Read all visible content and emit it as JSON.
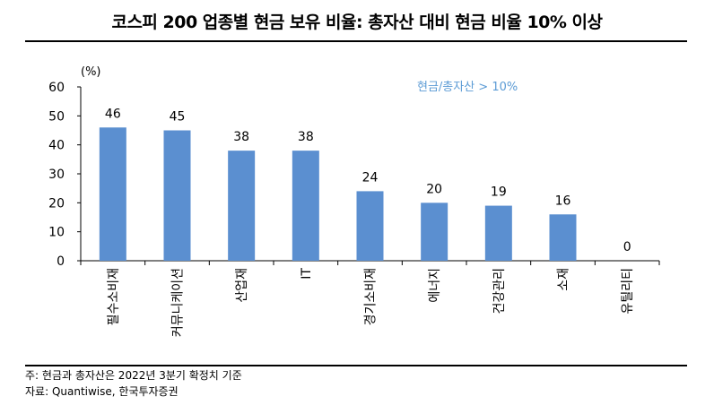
{
  "title": "코스피 200 업종별 현금 보유 비율: 총자산 대비 현금 비율 10% 이상",
  "chart_data": {
    "type": "bar",
    "unit_label": "(%)",
    "categories": [
      "필수소비재",
      "커뮤니케이션",
      "산업재",
      "IT",
      "경기소비재",
      "에너지",
      "건강관리",
      "소재",
      "유틸리티"
    ],
    "values": [
      46,
      45,
      38,
      38,
      24,
      20,
      19,
      16,
      0
    ],
    "data_labels": [
      "46",
      "45",
      "38",
      "38",
      "24",
      "20",
      "19",
      "16",
      "0"
    ],
    "ylim": [
      0,
      60
    ],
    "yticks": [
      0,
      10,
      20,
      30,
      40,
      50,
      60
    ],
    "annotation": "현금/총자산 > 10%",
    "bar_color": "#5b8fd0",
    "annotation_color": "#5b9bd5",
    "grid": false
  },
  "footnote": "주: 현금과 총자산은 2022년 3분기 확정치 기준",
  "source": "자료: Quantiwise, 한국투자증권"
}
